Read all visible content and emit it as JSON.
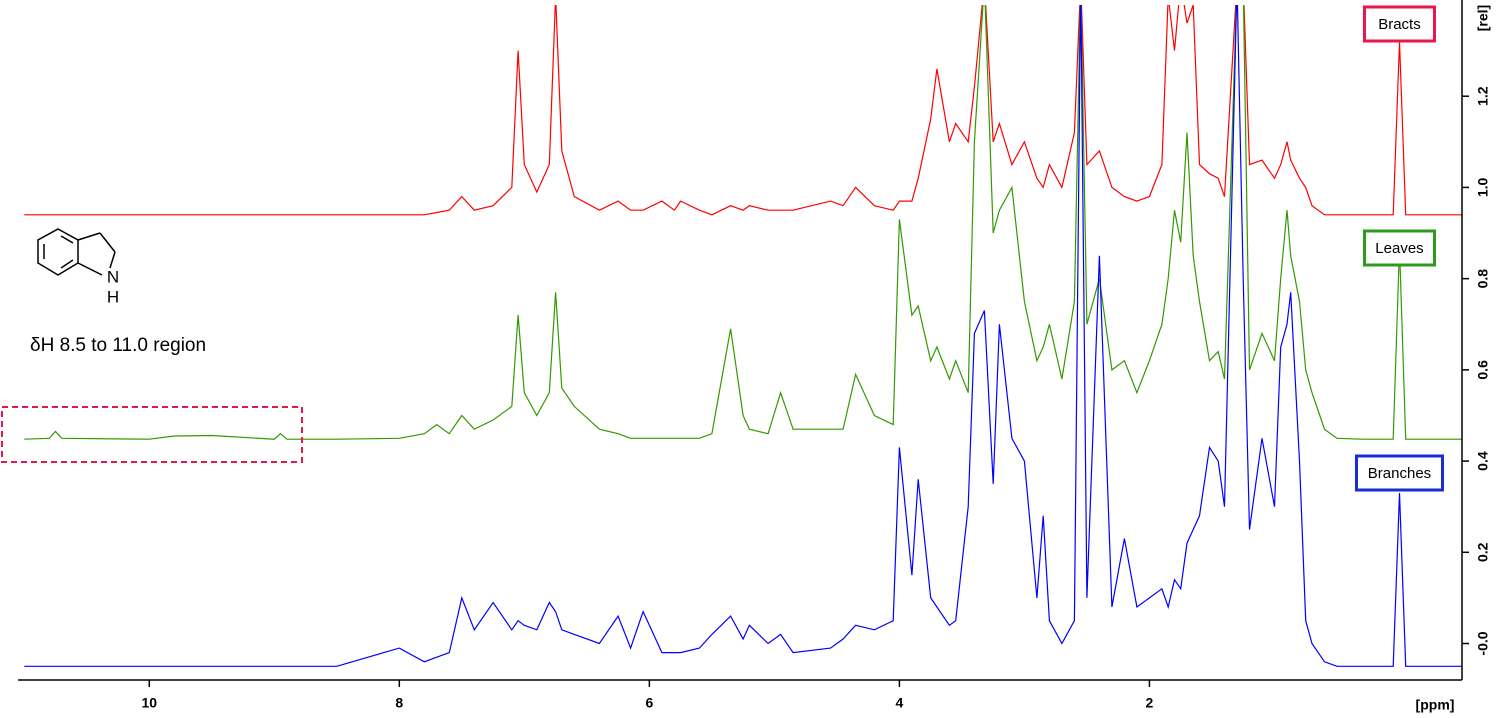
{
  "chart_data": {
    "type": "line",
    "x_label": "[ppm]",
    "y_label": "[rel]",
    "annotation": "δH 8.5 to 11.0 region",
    "structure_labels": [
      "N",
      "H"
    ],
    "xlim": [
      11.05,
      -0.5
    ],
    "ylim": [
      -0.08,
      1.4
    ],
    "xticks": [
      10,
      8,
      6,
      4,
      2
    ],
    "yticks": [
      {
        "value": 0,
        "label": "-0.0"
      },
      0.2,
      0.4,
      0.6,
      0.8,
      {
        "value": 1,
        "label": "1.0"
      },
      1.2
    ],
    "x": [
      11.0,
      10.8,
      10.75,
      10.7,
      10.0,
      9.8,
      9.5,
      9.0,
      8.95,
      8.9,
      8.5,
      8.0,
      7.8,
      7.7,
      7.6,
      7.5,
      7.4,
      7.25,
      7.1,
      7.05,
      7.0,
      6.9,
      6.8,
      6.75,
      6.7,
      6.6,
      6.4,
      6.25,
      6.15,
      6.05,
      5.9,
      5.8,
      5.75,
      5.6,
      5.5,
      5.35,
      5.25,
      5.2,
      5.05,
      4.95,
      4.85,
      4.55,
      4.45,
      4.35,
      4.2,
      4.05,
      4.0,
      3.9,
      3.85,
      3.75,
      3.7,
      3.6,
      3.55,
      3.45,
      3.4,
      3.32,
      3.25,
      3.2,
      3.1,
      3.0,
      2.9,
      2.85,
      2.8,
      2.7,
      2.6,
      2.55,
      2.5,
      2.4,
      2.3,
      2.2,
      2.1,
      2.0,
      1.9,
      1.85,
      1.8,
      1.75,
      1.7,
      1.65,
      1.6,
      1.52,
      1.45,
      1.4,
      1.3,
      1.25,
      1.2,
      1.1,
      1.0,
      0.95,
      0.9,
      0.87,
      0.8,
      0.75,
      0.7,
      0.6,
      0.5,
      0.3,
      0.05,
      0.0,
      -0.05,
      -0.5
    ],
    "series": [
      {
        "name": "Bracts",
        "color": "#ff0000",
        "box_color": "#e8174a",
        "values": [
          0.94,
          0.94,
          0.94,
          0.94,
          0.94,
          0.94,
          0.94,
          0.94,
          0.94,
          0.94,
          0.94,
          0.94,
          0.94,
          0.945,
          0.95,
          0.98,
          0.95,
          0.96,
          1.0,
          1.3,
          1.05,
          0.99,
          1.05,
          1.42,
          1.08,
          0.98,
          0.95,
          0.97,
          0.95,
          0.95,
          0.97,
          0.95,
          0.97,
          0.95,
          0.94,
          0.96,
          0.95,
          0.96,
          0.95,
          0.95,
          0.95,
          0.97,
          0.96,
          1.0,
          0.96,
          0.95,
          0.97,
          0.97,
          1.02,
          1.15,
          1.26,
          1.1,
          1.14,
          1.1,
          1.22,
          1.45,
          1.1,
          1.14,
          1.05,
          1.1,
          1.02,
          1.0,
          1.05,
          1.0,
          1.12,
          1.45,
          1.05,
          1.08,
          1.0,
          0.98,
          0.97,
          0.98,
          1.05,
          1.42,
          1.3,
          1.45,
          1.36,
          1.4,
          1.05,
          1.03,
          1.02,
          0.98,
          1.45,
          1.45,
          1.05,
          1.06,
          1.02,
          1.05,
          1.1,
          1.06,
          1.02,
          1.0,
          0.96,
          0.94,
          0.94,
          0.94,
          0.94,
          1.32,
          0.94,
          0.94
        ]
      },
      {
        "name": "Leaves",
        "color": "#339900",
        "box_color": "#2e9a1a",
        "values": [
          0.448,
          0.45,
          0.465,
          0.45,
          0.448,
          0.455,
          0.456,
          0.448,
          0.46,
          0.448,
          0.448,
          0.45,
          0.46,
          0.48,
          0.46,
          0.5,
          0.47,
          0.49,
          0.52,
          0.72,
          0.55,
          0.5,
          0.55,
          0.77,
          0.56,
          0.52,
          0.47,
          0.46,
          0.45,
          0.45,
          0.45,
          0.45,
          0.45,
          0.45,
          0.46,
          0.69,
          0.5,
          0.47,
          0.46,
          0.55,
          0.47,
          0.47,
          0.47,
          0.59,
          0.5,
          0.48,
          0.93,
          0.72,
          0.74,
          0.62,
          0.65,
          0.58,
          0.62,
          0.55,
          1.1,
          1.45,
          0.9,
          0.95,
          1.0,
          0.75,
          0.62,
          0.65,
          0.7,
          0.58,
          0.75,
          1.45,
          0.7,
          0.8,
          0.6,
          0.62,
          0.55,
          0.62,
          0.7,
          0.8,
          0.95,
          0.88,
          1.12,
          0.85,
          0.75,
          0.62,
          0.64,
          0.58,
          1.45,
          1.45,
          0.6,
          0.68,
          0.62,
          0.8,
          0.95,
          0.85,
          0.75,
          0.6,
          0.55,
          0.47,
          0.45,
          0.448,
          0.448,
          0.87,
          0.448,
          0.448
        ]
      },
      {
        "name": "Branches",
        "color": "#0000ff",
        "box_color": "#1a2ed0",
        "values": [
          -0.05,
          -0.05,
          -0.05,
          -0.05,
          -0.05,
          -0.05,
          -0.05,
          -0.05,
          -0.05,
          -0.05,
          -0.05,
          -0.01,
          -0.04,
          -0.03,
          -0.02,
          0.1,
          0.03,
          0.09,
          0.03,
          0.05,
          0.04,
          0.03,
          0.09,
          0.07,
          0.03,
          0.02,
          0.0,
          0.06,
          -0.01,
          0.07,
          -0.02,
          -0.02,
          -0.02,
          -0.01,
          0.02,
          0.06,
          0.01,
          0.04,
          0.0,
          0.02,
          -0.02,
          -0.01,
          0.01,
          0.04,
          0.03,
          0.05,
          0.43,
          0.15,
          0.36,
          0.1,
          0.08,
          0.04,
          0.05,
          0.3,
          0.68,
          0.73,
          0.35,
          0.7,
          0.45,
          0.4,
          0.1,
          0.28,
          0.05,
          0.0,
          0.05,
          1.45,
          0.1,
          0.85,
          0.08,
          0.23,
          0.08,
          0.1,
          0.12,
          0.08,
          0.14,
          0.12,
          0.22,
          0.25,
          0.28,
          0.43,
          0.4,
          0.3,
          1.45,
          0.8,
          0.25,
          0.45,
          0.3,
          0.65,
          0.7,
          0.77,
          0.4,
          0.05,
          0.0,
          -0.04,
          -0.05,
          -0.05,
          -0.05,
          0.33,
          -0.05,
          -0.05
        ]
      }
    ]
  }
}
